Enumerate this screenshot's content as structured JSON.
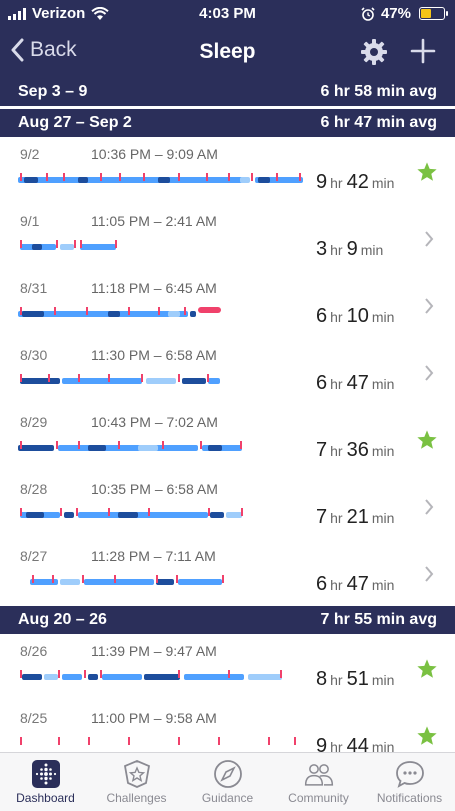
{
  "status": {
    "carrier": "Verizon",
    "time": "4:03 PM",
    "battery": "47%"
  },
  "nav": {
    "back_label": "Back",
    "title": "Sleep"
  },
  "weeks": [
    {
      "range": "Sep 3 – 9",
      "avg": "6 hr 58 min avg"
    },
    {
      "range": "Aug 27 – Sep 2",
      "avg": "6 hr 47 min avg"
    },
    {
      "range": "Aug 20 – 26",
      "avg": "7 hr 55 min avg"
    }
  ],
  "nights": [
    {
      "date": "9/2",
      "times": "10:36 PM – 9:09 AM",
      "hr": "9",
      "min": "42",
      "star": true
    },
    {
      "date": "9/1",
      "times": "11:05 PM – 2:41 AM",
      "hr": "3",
      "min": "9",
      "star": false
    },
    {
      "date": "8/31",
      "times": "11:18 PM – 6:45 AM",
      "hr": "6",
      "min": "10",
      "star": false
    },
    {
      "date": "8/30",
      "times": "11:30 PM – 6:58 AM",
      "hr": "6",
      "min": "47",
      "star": false
    },
    {
      "date": "8/29",
      "times": "10:43 PM – 7:02 AM",
      "hr": "7",
      "min": "36",
      "star": true
    },
    {
      "date": "8/28",
      "times": "10:35 PM – 6:58 AM",
      "hr": "7",
      "min": "21",
      "star": false
    },
    {
      "date": "8/27",
      "times": "11:28 PM – 7:11 AM",
      "hr": "6",
      "min": "47",
      "star": false
    },
    {
      "date": "8/26",
      "times": "11:39 PM – 9:47 AM",
      "hr": "8",
      "min": "51",
      "star": true
    },
    {
      "date": "8/25",
      "times": "11:00 PM – 9:58 AM",
      "hr": "9",
      "min": "44",
      "star": true
    }
  ],
  "units": {
    "hr": "hr",
    "min": "min"
  },
  "tabs": [
    {
      "label": "Dashboard",
      "icon": "dashboard-icon",
      "active": true
    },
    {
      "label": "Challenges",
      "icon": "challenges-star-icon",
      "active": false
    },
    {
      "label": "Guidance",
      "icon": "compass-icon",
      "active": false
    },
    {
      "label": "Community",
      "icon": "people-icon",
      "active": false
    },
    {
      "label": "Notifications",
      "icon": "chat-bubble-icon",
      "active": false
    }
  ],
  "colors": {
    "header": "#2b2f5a",
    "star": "#7ac142",
    "wake": "#f0416b",
    "deep": "#1d4d9c",
    "light": "#4fa0ff",
    "rem": "#9fcdfb"
  }
}
